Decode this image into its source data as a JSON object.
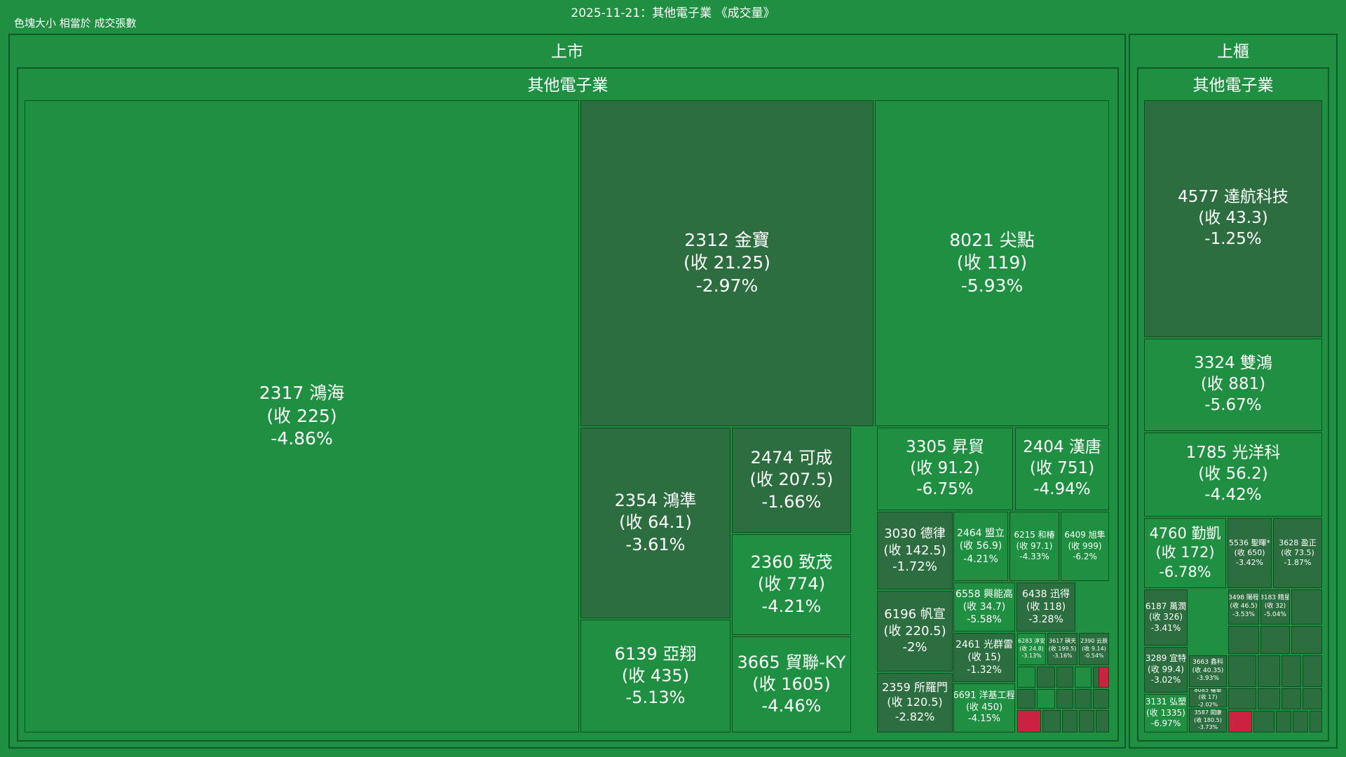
{
  "title": "2025-11-21：其他電子業 《成交量》",
  "legend_note": "色塊大小 相當於 成交張數",
  "colors": {
    "background": "#1f8f41",
    "border": "#0f5a27",
    "down_mid": "#1f8f41",
    "down_light": "#2a9d4a",
    "down_dark": "#2d6e40",
    "up": "#c9233f"
  },
  "groups": [
    {
      "market": "上市",
      "sector": "其他電子業"
    },
    {
      "market": "上櫃",
      "sector": "其他電子業"
    }
  ],
  "chart_data": {
    "type": "treemap",
    "title": "2025-11-21：其他電子業 《成交量》",
    "size_metric": "成交張數",
    "tiles": [
      {
        "code": "2317",
        "name": "鴻海",
        "close": "225",
        "change": "-4.86%",
        "market": "上市"
      },
      {
        "code": "2312",
        "name": "金寶",
        "close": "21.25",
        "change": "-2.97%",
        "market": "上市"
      },
      {
        "code": "8021",
        "name": "尖點",
        "close": "119",
        "change": "-5.93%",
        "market": "上市"
      },
      {
        "code": "2354",
        "name": "鴻準",
        "close": "64.1",
        "change": "-3.61%",
        "market": "上市"
      },
      {
        "code": "2474",
        "name": "可成",
        "close": "207.5",
        "change": "-1.66%",
        "market": "上市"
      },
      {
        "code": "2360",
        "name": "致茂",
        "close": "774",
        "change": "-4.21%",
        "market": "上市"
      },
      {
        "code": "6139",
        "name": "亞翔",
        "close": "435",
        "change": "-5.13%",
        "market": "上市"
      },
      {
        "code": "3665",
        "name": "貿聯-KY",
        "close": "1605",
        "change": "-4.46%",
        "market": "上市"
      },
      {
        "code": "3305",
        "name": "昇貿",
        "close": "91.2",
        "change": "-6.75%",
        "market": "上市"
      },
      {
        "code": "2404",
        "name": "漢唐",
        "close": "751",
        "change": "-4.94%",
        "market": "上市"
      },
      {
        "code": "3030",
        "name": "德律",
        "close": "142.5",
        "change": "-1.72%",
        "market": "上市"
      },
      {
        "code": "2464",
        "name": "盟立",
        "close": "56.9",
        "change": "-4.21%",
        "market": "上市"
      },
      {
        "code": "6215",
        "name": "和椿",
        "close": "97.1",
        "change": "-4.33%",
        "market": "上市"
      },
      {
        "code": "6409",
        "name": "旭隼",
        "close": "999",
        "change": "-6.2%",
        "market": "上市"
      },
      {
        "code": "6196",
        "name": "帆宣",
        "close": "220.5",
        "change": "-2%",
        "market": "上市"
      },
      {
        "code": "6558",
        "name": "興能高",
        "close": "34.7",
        "change": "-5.58%",
        "market": "上市"
      },
      {
        "code": "6438",
        "name": "迅得",
        "close": "118",
        "change": "-3.28%",
        "market": "上市"
      },
      {
        "code": "2461",
        "name": "光群雷",
        "close": "15",
        "change": "-1.32%",
        "market": "上市"
      },
      {
        "code": "2359",
        "name": "所羅門",
        "close": "120.5",
        "change": "-2.82%",
        "market": "上市"
      },
      {
        "code": "6691",
        "name": "洋基工程",
        "close": "450",
        "change": "-4.15%",
        "market": "上市"
      },
      {
        "code": "6283",
        "name": "淳安",
        "close": "24.8",
        "change": "-3.13%",
        "market": "上市"
      },
      {
        "code": "3617",
        "name": "碩天",
        "close": "199.5",
        "change": "-3.16%",
        "market": "上市"
      },
      {
        "code": "2390",
        "name": "云辰",
        "close": "9.14",
        "change": "-0.54%",
        "market": "上市"
      },
      {
        "code": "4577",
        "name": "達航科技",
        "close": "43.3",
        "change": "-1.25%",
        "market": "上櫃"
      },
      {
        "code": "3324",
        "name": "雙鴻",
        "close": "881",
        "change": "-5.67%",
        "market": "上櫃"
      },
      {
        "code": "1785",
        "name": "光洋科",
        "close": "56.2",
        "change": "-4.42%",
        "market": "上櫃"
      },
      {
        "code": "4760",
        "name": "勤凱",
        "close": "172",
        "change": "-6.78%",
        "market": "上櫃"
      },
      {
        "code": "5536",
        "name": "聖暉*",
        "close": "650",
        "change": "-3.42%",
        "market": "上櫃"
      },
      {
        "code": "3628",
        "name": "盈正",
        "close": "73.5",
        "change": "-1.87%",
        "market": "上櫃"
      },
      {
        "code": "6187",
        "name": "萬潤",
        "close": "326",
        "change": "-3.41%",
        "market": "上櫃"
      },
      {
        "code": "3498",
        "name": "陽程",
        "close": "46.5",
        "change": "-3.53%",
        "market": "上櫃"
      },
      {
        "code": "8183",
        "name": "精星",
        "close": "32",
        "change": "-5.04%",
        "market": "上櫃"
      },
      {
        "code": "3289",
        "name": "宜特",
        "close": "99.4",
        "change": "-3.02%",
        "market": "上櫃"
      },
      {
        "code": "3663",
        "name": "鑫科",
        "close": "40.35",
        "change": "-3.93%",
        "market": "上櫃"
      },
      {
        "code": "3131",
        "name": "弘塑",
        "close": "1335",
        "change": "-6.97%",
        "market": "上櫃"
      },
      {
        "code": "8085",
        "name": "福華",
        "close": "17",
        "change": "-2.02%",
        "market": "上櫃"
      },
      {
        "code": "3587",
        "name": "閎康",
        "close": "180.5",
        "change": "-3.73%",
        "market": "上櫃"
      }
    ]
  }
}
